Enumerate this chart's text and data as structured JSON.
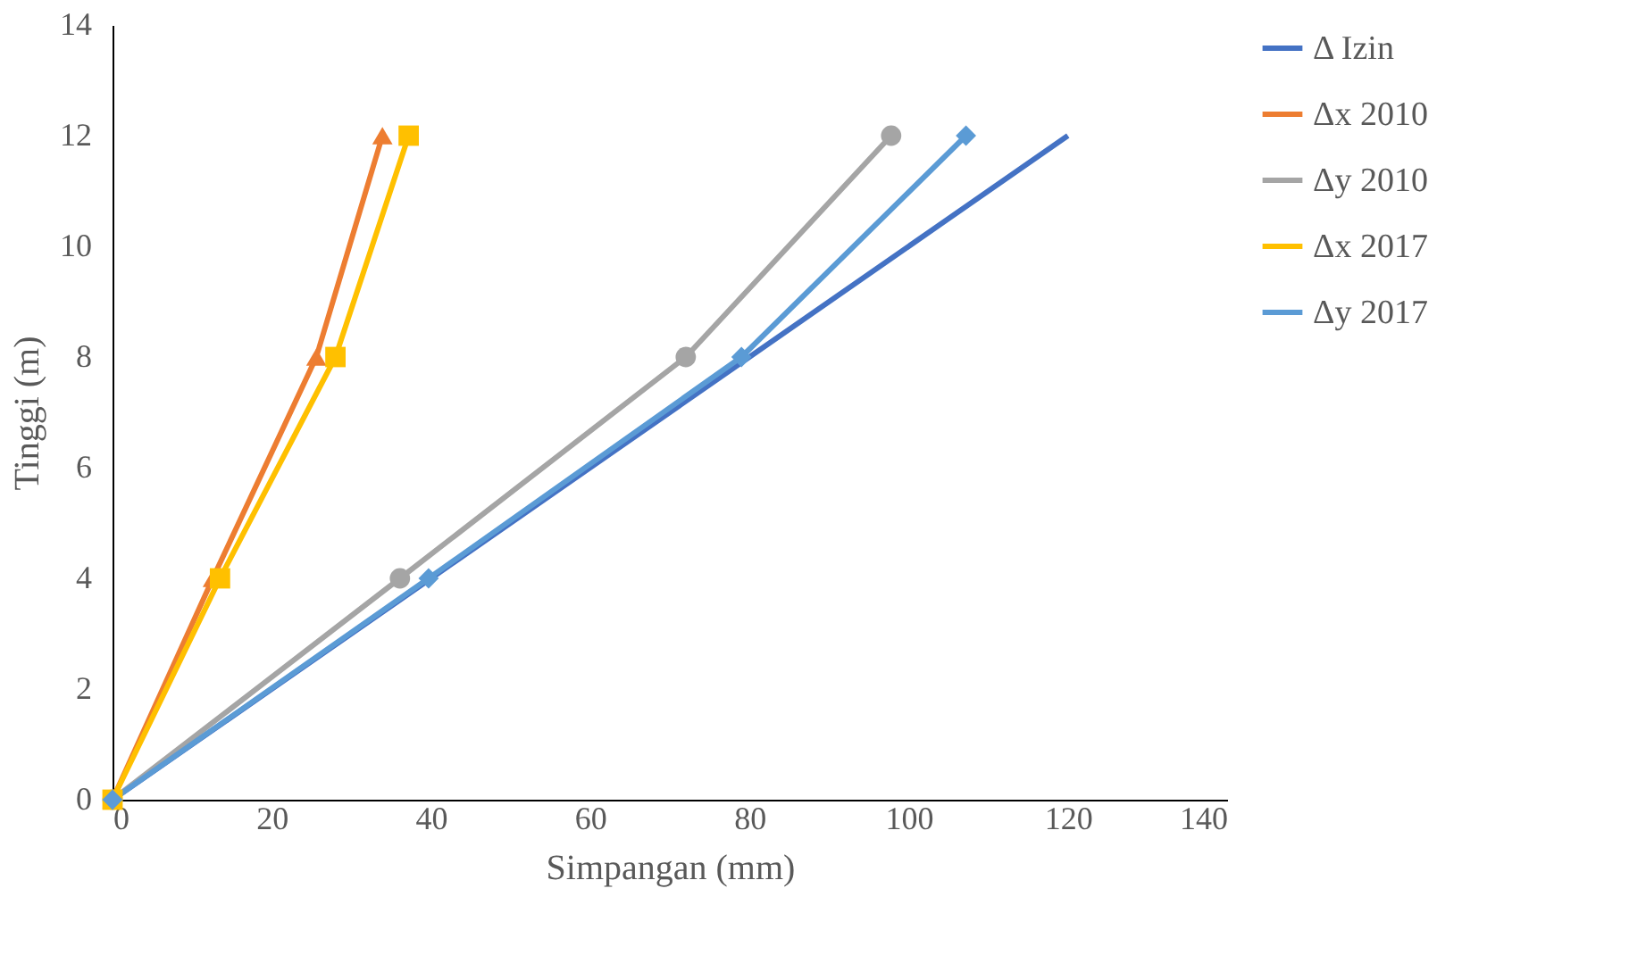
{
  "chart_data": {
    "type": "line",
    "xlabel": "Simpangan (mm)",
    "ylabel": "Tinggi (m)",
    "xlim": [
      0,
      140
    ],
    "xticks": [
      0,
      20,
      40,
      60,
      80,
      100,
      120,
      140
    ],
    "ylim": [
      0,
      14
    ],
    "yticks": [
      0,
      2,
      4,
      6,
      8,
      10,
      12,
      14
    ],
    "grid": false,
    "legend": "right",
    "line_style": "solid",
    "series": [
      {
        "name": "Δ Izin",
        "color": "#4472c4",
        "marker": "none",
        "x": [
          0,
          40,
          80,
          120
        ],
        "values": [
          0,
          4,
          8,
          12
        ]
      },
      {
        "name": "Δx 2010",
        "color": "#ed7d31",
        "marker": "triangle",
        "x": [
          0,
          12.6,
          25.6,
          33.9
        ],
        "values": [
          0,
          4,
          8,
          12
        ]
      },
      {
        "name": "Δy 2010",
        "color": "#a5a5a5",
        "marker": "circle",
        "x": [
          0,
          36.1,
          72.0,
          97.8
        ],
        "values": [
          0,
          4,
          8,
          12
        ]
      },
      {
        "name": "Δx 2017",
        "color": "#ffc000",
        "marker": "square",
        "x": [
          0,
          13.5,
          28.0,
          37.2
        ],
        "values": [
          0,
          4,
          8,
          12
        ]
      },
      {
        "name": "Δy 2017",
        "color": "#5b9bd5",
        "marker": "diamond",
        "x": [
          0,
          39.7,
          79.0,
          107.2
        ],
        "values": [
          0,
          4,
          8,
          12
        ]
      }
    ]
  }
}
